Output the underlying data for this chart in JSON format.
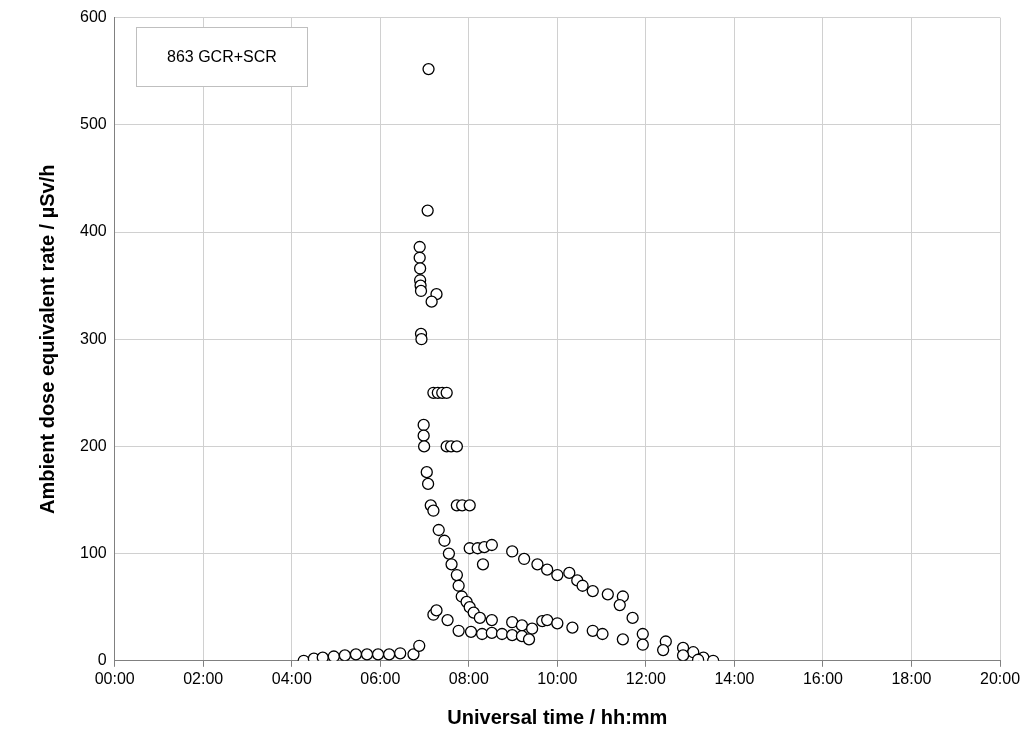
{
  "chart_data": {
    "type": "scatter",
    "xlabel": "Universal time / hh:mm",
    "ylabel": "Ambient dose equivalent rate / µSv/h",
    "annotations": [
      "863 GCR+SCR"
    ],
    "xlim": [
      0,
      20
    ],
    "xticks": [
      {
        "value": 0,
        "label": "00:00"
      },
      {
        "value": 2,
        "label": "02:00"
      },
      {
        "value": 4,
        "label": "04:00"
      },
      {
        "value": 6,
        "label": "06:00"
      },
      {
        "value": 8,
        "label": "08:00"
      },
      {
        "value": 10,
        "label": "10:00"
      },
      {
        "value": 12,
        "label": "12:00"
      },
      {
        "value": 14,
        "label": "14:00"
      },
      {
        "value": 16,
        "label": "16:00"
      },
      {
        "value": 18,
        "label": "18:00"
      },
      {
        "value": 20,
        "label": "20:00"
      }
    ],
    "ylim": [
      0,
      600
    ],
    "yticks": [
      0,
      100,
      200,
      300,
      400,
      500,
      600
    ],
    "grid": true,
    "legend": false,
    "marker": "circle",
    "series": [
      {
        "color": "#ffffff",
        "x": [
          4.27,
          4.5,
          4.7,
          4.95,
          5.2,
          5.45,
          5.7,
          5.95,
          6.2,
          6.45,
          6.75,
          6.88,
          6.89,
          6.89,
          6.9,
          6.9,
          6.91,
          6.92,
          6.92,
          6.93,
          6.98,
          6.98,
          6.99,
          7.05,
          7.08,
          7.14,
          7.2,
          7.07,
          7.09,
          7.27,
          7.16,
          7.2,
          7.3,
          7.4,
          7.5,
          7.5,
          7.6,
          7.73,
          7.73,
          7.85,
          8.02,
          8.02,
          8.2,
          8.35,
          8.52,
          8.32,
          8.98,
          9.25,
          9.55,
          9.77,
          10.0,
          10.27,
          10.45,
          10.57,
          10.8,
          11.14,
          11.48,
          11.41,
          11.7,
          11.93,
          12.45,
          12.84,
          13.07,
          13.3,
          13.52,
          7.32,
          7.45,
          7.55,
          7.61,
          7.73,
          7.77,
          7.84,
          7.95,
          8.02,
          8.11,
          8.25,
          8.52,
          8.98,
          9.2,
          9.43,
          9.66,
          9.77,
          10.0,
          10.34,
          10.8,
          11.02,
          11.48,
          11.93,
          12.39,
          12.84,
          13.18,
          7.2,
          7.27,
          7.52,
          7.77,
          8.05,
          8.3,
          8.52,
          8.75,
          8.98,
          9.2,
          9.36
        ],
        "values": [
          0,
          2,
          3,
          4,
          5,
          6,
          6,
          6,
          6,
          7,
          6,
          14,
          386,
          376,
          366,
          355,
          350,
          345,
          305,
          300,
          220,
          210,
          200,
          176,
          165,
          145,
          140,
          420,
          552,
          342,
          335,
          250,
          250,
          250,
          250,
          200,
          200,
          200,
          145,
          145,
          145,
          105,
          105,
          106,
          108,
          90,
          102,
          95,
          90,
          85,
          80,
          82,
          75,
          70,
          65,
          62,
          60,
          52,
          40,
          25,
          18,
          12,
          8,
          3,
          0,
          122,
          112,
          100,
          90,
          80,
          70,
          60,
          55,
          50,
          45,
          40,
          38,
          36,
          33,
          30,
          37,
          38,
          35,
          31,
          28,
          25,
          20,
          15,
          10,
          5,
          1,
          43,
          47,
          38,
          28,
          27,
          25,
          26,
          25,
          24,
          23,
          20
        ]
      }
    ]
  }
}
